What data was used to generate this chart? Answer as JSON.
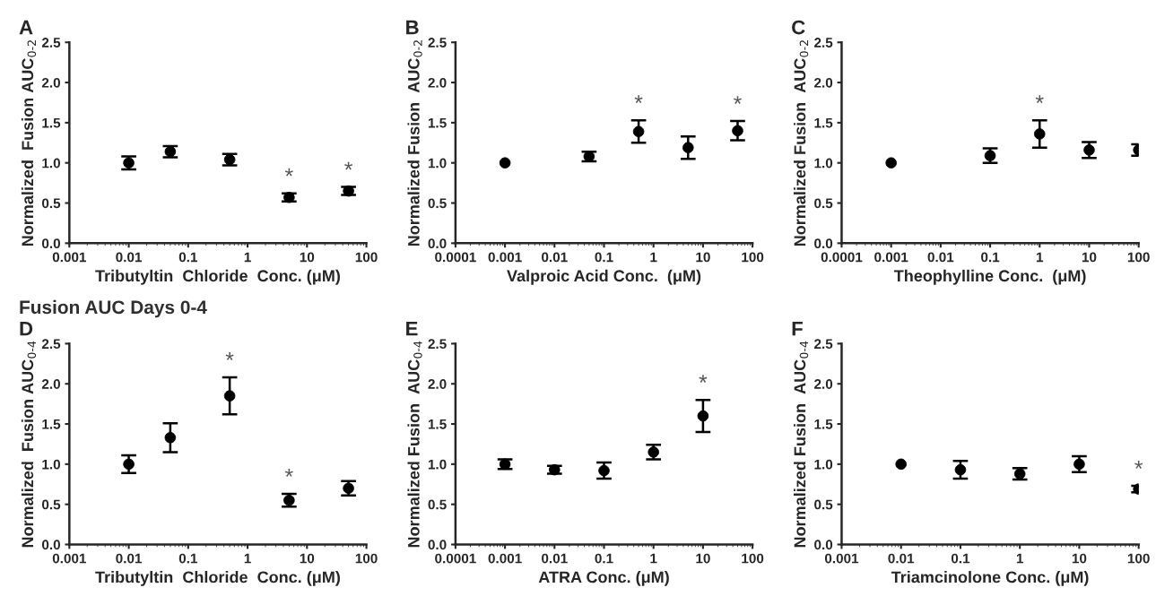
{
  "chart_data": [
    {
      "type": "scatter",
      "title": "A",
      "xlabel": "Tributyltin  Chloride  Conc. (μM)",
      "ylabel": "Normalized  Fusion AUC$_{0‐2}$",
      "x": [
        0.01,
        0.05,
        0.5,
        5,
        50
      ],
      "values": [
        1.0,
        1.14,
        1.04,
        0.57,
        0.65
      ],
      "errors": [
        0.08,
        0.07,
        0.07,
        0.05,
        0.05
      ],
      "color": "#000000",
      "marker": "circle",
      "log": "x",
      "grid": false,
      "xlim": [
        0.001,
        100
      ],
      "xticks": [
        0.001,
        0.01,
        0.1,
        1,
        10,
        100
      ],
      "ylim": [
        0,
        2.5
      ],
      "yticks": [
        {
          "value": 0,
          "label": "0.0"
        },
        {
          "value": 0.5,
          "label": "0.5"
        },
        {
          "value": 1,
          "label": "1.0"
        },
        {
          "value": 1.5,
          "label": "1.5"
        },
        {
          "value": 2,
          "label": "2.0"
        },
        {
          "value": 2.5,
          "label": "2.5"
        }
      ],
      "annotations": [
        {
          "text": "*",
          "x": 5,
          "y": 0.57
        },
        {
          "text": "*",
          "x": 50,
          "y": 0.65
        }
      ]
    },
    {
      "type": "scatter",
      "title": "B",
      "xlabel": "Valproic Acid Conc.  (μM)",
      "ylabel": "Normalized Fusion  AUC$_{0‐2}$",
      "x": [
        0.001,
        0.05,
        0.5,
        5,
        50
      ],
      "values": [
        1.0,
        1.08,
        1.39,
        1.19,
        1.4
      ],
      "errors": [
        null,
        0.06,
        0.14,
        0.14,
        0.12
      ],
      "color": "#000000",
      "marker": "circle",
      "log": "x",
      "grid": false,
      "xlim": [
        0.0001,
        100
      ],
      "xticks": [
        0.0001,
        0.001,
        0.01,
        0.1,
        1,
        10,
        100
      ],
      "ylim": [
        0,
        2.5
      ],
      "yticks": [
        {
          "value": 0,
          "label": "0.0"
        },
        {
          "value": 0.5,
          "label": "0.5"
        },
        {
          "value": 1,
          "label": "1.0"
        },
        {
          "value": 1.5,
          "label": "1.5"
        },
        {
          "value": 2,
          "label": "2.0"
        },
        {
          "value": 2.5,
          "label": "2.5"
        }
      ],
      "annotations": [
        {
          "text": "*",
          "x": 0.5,
          "y": 1.39
        },
        {
          "text": "*",
          "x": 50,
          "y": 1.4
        }
      ]
    },
    {
      "type": "scatter",
      "title": "C",
      "xlabel": "Theophylline Conc.  (μM)",
      "ylabel": "Normalized Fusion  AUC$_{0‐2}$",
      "x": [
        0.001,
        0.1,
        1,
        10,
        100
      ],
      "values": [
        1.0,
        1.09,
        1.36,
        1.16,
        1.16
      ],
      "errors": [
        null,
        0.09,
        0.17,
        0.1,
        0.07
      ],
      "color": "#000000",
      "marker": "circle",
      "log": "x",
      "grid": false,
      "xlim": [
        0.0001,
        100
      ],
      "xticks": [
        0.0001,
        0.001,
        0.01,
        0.1,
        1,
        10,
        100
      ],
      "ylim": [
        0,
        2.5
      ],
      "yticks": [
        {
          "value": 0,
          "label": "0.0"
        },
        {
          "value": 0.5,
          "label": "0.5"
        },
        {
          "value": 1,
          "label": "1.0"
        },
        {
          "value": 1.5,
          "label": "1.5"
        },
        {
          "value": 2,
          "label": "2.0"
        },
        {
          "value": 2.5,
          "label": "2.5"
        }
      ],
      "annotations": [
        {
          "text": "*",
          "x": 1,
          "y": 1.36
        }
      ]
    },
    {
      "type": "scatter",
      "title": "D",
      "xlabel": "Tributyltin  Chloride  Conc. (μM)",
      "ylabel": "Normalized  Fusion AUC$_{0‐4}$",
      "x": [
        0.01,
        0.05,
        0.5,
        5,
        50
      ],
      "values": [
        1.0,
        1.33,
        1.85,
        0.55,
        0.7
      ],
      "errors": [
        0.11,
        0.18,
        0.23,
        0.08,
        0.09
      ],
      "color": "#000000",
      "marker": "circle",
      "log": "x",
      "grid": false,
      "xlim": [
        0.001,
        100
      ],
      "xticks": [
        0.001,
        0.01,
        0.1,
        1,
        10,
        100
      ],
      "ylim": [
        0,
        2.5
      ],
      "yticks": [
        {
          "value": 0,
          "label": "0.0"
        },
        {
          "value": 0.5,
          "label": "0.5"
        },
        {
          "value": 1,
          "label": "1.0"
        },
        {
          "value": 1.5,
          "label": "1.5"
        },
        {
          "value": 2,
          "label": "2.0"
        },
        {
          "value": 2.5,
          "label": "2.5"
        }
      ],
      "annotations": [
        "Fusion AUC Days 0-4",
        {
          "text": "*",
          "x": 0.5,
          "y": 1.85
        },
        {
          "text": "*",
          "x": 5,
          "y": 0.55
        }
      ]
    },
    {
      "type": "scatter",
      "title": "E",
      "xlabel": "ATRA Conc. (μM)",
      "ylabel": "Normalized Fusion  AUC$_{0‐4}$",
      "x": [
        0.001,
        0.01,
        0.1,
        1,
        10
      ],
      "values": [
        1.0,
        0.93,
        0.92,
        1.15,
        1.6
      ],
      "errors": [
        0.06,
        0.05,
        0.1,
        0.09,
        0.2
      ],
      "color": "#000000",
      "marker": "circle",
      "log": "x",
      "grid": false,
      "xlim": [
        0.0001,
        100
      ],
      "xticks": [
        0.0001,
        0.001,
        0.01,
        0.1,
        1,
        10,
        100
      ],
      "ylim": [
        0,
        2.5
      ],
      "yticks": [
        {
          "value": 0,
          "label": "0.0"
        },
        {
          "value": 0.5,
          "label": "0.5"
        },
        {
          "value": 1,
          "label": "1.0"
        },
        {
          "value": 1.5,
          "label": "1.5"
        },
        {
          "value": 2,
          "label": "2.0"
        },
        {
          "value": 2.5,
          "label": "2.5"
        }
      ],
      "annotations": [
        {
          "text": "*",
          "x": 10,
          "y": 1.6
        }
      ]
    },
    {
      "type": "scatter",
      "title": "F",
      "xlabel": "Triamcinolone Conc. (μM)",
      "ylabel": "Normalized Fusion  AUC$_{0‐4}$",
      "x": [
        0.01,
        0.1,
        1,
        10,
        100
      ],
      "values": [
        1.0,
        0.93,
        0.88,
        1.0,
        0.69
      ],
      "errors": [
        null,
        0.11,
        0.07,
        0.1,
        0.04
      ],
      "color": "#000000",
      "marker": "circle",
      "log": "x",
      "grid": false,
      "xlim": [
        0.001,
        100
      ],
      "xticks": [
        0.001,
        0.01,
        0.1,
        1,
        10,
        100
      ],
      "ylim": [
        0,
        2.5
      ],
      "yticks": [
        {
          "value": 0,
          "label": "0.0"
        },
        {
          "value": 0.5,
          "label": "0.5"
        },
        {
          "value": 1,
          "label": "1.0"
        },
        {
          "value": 1.5,
          "label": "1.5"
        },
        {
          "value": 2,
          "label": "2.0"
        },
        {
          "value": 2.5,
          "label": "2.5"
        }
      ],
      "annotations": [
        {
          "text": "*",
          "x": 100,
          "y": 0.69
        }
      ]
    }
  ]
}
